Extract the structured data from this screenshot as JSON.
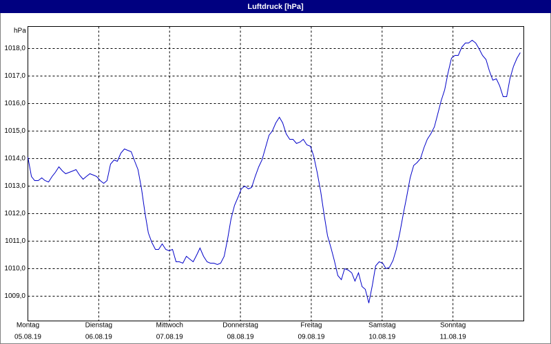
{
  "chart_data": {
    "type": "line",
    "title": "Luftdruck [hPa]",
    "y_label": "hPa",
    "xlim": [
      0,
      168
    ],
    "ylim": [
      1008.1,
      1018.8
    ],
    "yticks": [
      {
        "value": 1009,
        "label": "1009,0"
      },
      {
        "value": 1010,
        "label": "1010,0"
      },
      {
        "value": 1011,
        "label": "1011,0"
      },
      {
        "value": 1012,
        "label": "1012,0"
      },
      {
        "value": 1013,
        "label": "1013,0"
      },
      {
        "value": 1014,
        "label": "1014,0"
      },
      {
        "value": 1015,
        "label": "1015,0"
      },
      {
        "value": 1016,
        "label": "1016,0"
      },
      {
        "value": 1017,
        "label": "1017,0"
      },
      {
        "value": 1018,
        "label": "1018,0"
      }
    ],
    "xticks": [
      {
        "value": 0,
        "label": "Montag"
      },
      {
        "value": 24,
        "label": "Dienstag"
      },
      {
        "value": 48,
        "label": "Mittwoch"
      },
      {
        "value": 72,
        "label": "Donnerstag"
      },
      {
        "value": 96,
        "label": "Freitag"
      },
      {
        "value": 120,
        "label": "Samstag"
      },
      {
        "value": 144,
        "label": "Sonntag"
      }
    ],
    "xtick_dates": [
      "05.08.19",
      "06.08.19",
      "07.08.19",
      "08.08.19",
      "09.08.19",
      "10.08.19",
      "11.08.19"
    ],
    "grid": true,
    "series": [
      {
        "name": "Luftdruck",
        "color": "#0000c8",
        "x": [
          0,
          1.2,
          2.3,
          3.5,
          4.7,
          5.8,
          7,
          8.2,
          9.3,
          10.5,
          11.7,
          12.8,
          14,
          15.2,
          16.3,
          17.5,
          18.7,
          19.8,
          21,
          22.2,
          23.3,
          24.5,
          25.7,
          26.8,
          28,
          29.2,
          30.3,
          31.5,
          32.7,
          33.8,
          35,
          36.2,
          37.3,
          38.5,
          39.7,
          40.8,
          42,
          43.2,
          44.3,
          45.5,
          46.7,
          47.8,
          49,
          50.2,
          51.3,
          52.5,
          53.7,
          54.8,
          56,
          57.2,
          58.3,
          59.5,
          60.7,
          61.8,
          63,
          64.2,
          65.3,
          66.5,
          67.7,
          68.8,
          70,
          71.2,
          72.3,
          73.5,
          74.7,
          75.8,
          77,
          78.2,
          79.3,
          80.5,
          81.7,
          82.8,
          84,
          85.2,
          86.3,
          87.5,
          88.7,
          89.8,
          91,
          92.2,
          93.3,
          94.5,
          95.7,
          96.8,
          98,
          99.2,
          100.3,
          101.5,
          102.7,
          103.8,
          105,
          106.2,
          107.3,
          108.5,
          109.7,
          110.8,
          112,
          113.2,
          114.3,
          115.5,
          116.7,
          117.8,
          119,
          120.2,
          121.3,
          122.5,
          123.7,
          124.8,
          126,
          127.2,
          128.3,
          129.5,
          130.7,
          131.8,
          133,
          134.2,
          135.3,
          136.5,
          137.7,
          138.8,
          140,
          141.2,
          142.3,
          143.5,
          144.7,
          145.8,
          147,
          148.2,
          149.3,
          150.5,
          151.7,
          152.8,
          154,
          155.2,
          156.3,
          157.5,
          158.7,
          159.8,
          161,
          162.2,
          163.3,
          164.5,
          165.7,
          166.8
        ],
        "values": [
          1014.05,
          1013.35,
          1013.2,
          1013.2,
          1013.3,
          1013.2,
          1013.15,
          1013.35,
          1013.5,
          1013.7,
          1013.55,
          1013.45,
          1013.5,
          1013.55,
          1013.6,
          1013.4,
          1013.25,
          1013.35,
          1013.45,
          1013.4,
          1013.35,
          1013.2,
          1013.1,
          1013.2,
          1013.8,
          1013.95,
          1013.9,
          1014.2,
          1014.35,
          1014.3,
          1014.25,
          1013.9,
          1013.6,
          1012.9,
          1012.0,
          1011.3,
          1010.95,
          1010.7,
          1010.7,
          1010.9,
          1010.7,
          1010.65,
          1010.7,
          1010.25,
          1010.25,
          1010.2,
          1010.45,
          1010.35,
          1010.25,
          1010.5,
          1010.75,
          1010.45,
          1010.25,
          1010.2,
          1010.2,
          1010.15,
          1010.2,
          1010.45,
          1011.1,
          1011.8,
          1012.3,
          1012.6,
          1012.9,
          1013.0,
          1012.9,
          1012.95,
          1013.35,
          1013.7,
          1013.95,
          1014.4,
          1014.85,
          1015.0,
          1015.3,
          1015.5,
          1015.3,
          1014.9,
          1014.7,
          1014.7,
          1014.55,
          1014.6,
          1014.7,
          1014.5,
          1014.45,
          1014.1,
          1013.5,
          1012.8,
          1012.0,
          1011.2,
          1010.75,
          1010.3,
          1009.75,
          1009.6,
          1010.0,
          1009.95,
          1009.85,
          1009.55,
          1009.85,
          1009.35,
          1009.25,
          1008.75,
          1009.4,
          1010.1,
          1010.25,
          1010.2,
          1010.0,
          1010.05,
          1010.3,
          1010.7,
          1011.3,
          1012.0,
          1012.6,
          1013.3,
          1013.75,
          1013.85,
          1014.0,
          1014.4,
          1014.7,
          1014.9,
          1015.15,
          1015.6,
          1016.1,
          1016.5,
          1017.1,
          1017.65,
          1017.75,
          1017.75,
          1018.05,
          1018.2,
          1018.2,
          1018.3,
          1018.2,
          1018.0,
          1017.75,
          1017.6,
          1017.2,
          1016.85,
          1016.9,
          1016.65,
          1016.25,
          1016.25,
          1016.9,
          1017.35,
          1017.65,
          1017.85
        ]
      }
    ]
  }
}
